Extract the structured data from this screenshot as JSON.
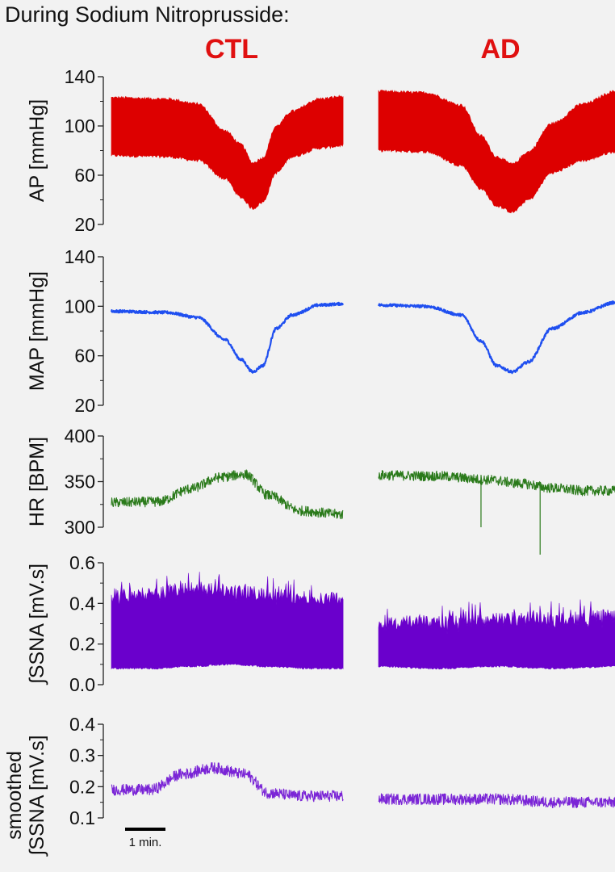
{
  "figure": {
    "title": "During Sodium Nitroprusside:",
    "groups": [
      {
        "label": "CTL",
        "color": "#e01010"
      },
      {
        "label": "AD",
        "color": "#e01010"
      }
    ],
    "scale_bar": "1 min."
  },
  "chart_data": [
    {
      "type": "line",
      "ylabel": "AP [mmHg]",
      "ylim": [
        20,
        140
      ],
      "yticks": [
        "20",
        "60",
        "100",
        "140"
      ],
      "color": "#dd0000",
      "style": "band",
      "x_unit": "min",
      "series": [
        {
          "group": "CTL",
          "x": [
            0,
            1.4,
            2.2,
            2.9,
            3.3,
            3.6,
            3.85,
            4.2,
            4.6,
            5.3,
            5.9
          ],
          "systolic": [
            123,
            122,
            118,
            96,
            85,
            70,
            74,
            100,
            112,
            122,
            124
          ],
          "diastolic": [
            76,
            75,
            72,
            57,
            42,
            33,
            38,
            62,
            75,
            82,
            84
          ]
        },
        {
          "group": "AD",
          "x": [
            0,
            1.2,
            2.1,
            2.6,
            3.0,
            3.4,
            3.8,
            4.4,
            5.2,
            6.0
          ],
          "systolic": [
            128,
            127,
            117,
            92,
            75,
            69,
            79,
            102,
            118,
            128
          ],
          "diastolic": [
            80,
            79,
            68,
            49,
            35,
            30,
            40,
            62,
            72,
            79
          ]
        }
      ]
    },
    {
      "type": "line",
      "ylabel": "MAP [mmHg]",
      "ylim": [
        20,
        140
      ],
      "yticks": [
        "20",
        "60",
        "100",
        "140"
      ],
      "color": "#1f4ff0",
      "style": "line",
      "x_unit": "min",
      "series": [
        {
          "group": "CTL",
          "x": [
            0,
            1.4,
            2.2,
            2.9,
            3.3,
            3.6,
            3.85,
            4.2,
            4.6,
            5.3,
            5.9
          ],
          "values": [
            96,
            95,
            91,
            73,
            57,
            47,
            52,
            82,
            93,
            101,
            102
          ]
        },
        {
          "group": "AD",
          "x": [
            0,
            1.2,
            2.1,
            2.6,
            3.0,
            3.4,
            3.8,
            4.4,
            5.2,
            6.0
          ],
          "values": [
            101,
            100,
            93,
            72,
            52,
            47,
            55,
            82,
            95,
            103
          ]
        }
      ]
    },
    {
      "type": "line",
      "ylabel": "HR [BPM]",
      "ylim": [
        300,
        400
      ],
      "yticks": [
        "300",
        "350",
        "400"
      ],
      "color": "#2a7a1a",
      "style": "line",
      "x_unit": "min",
      "series": [
        {
          "group": "CTL",
          "x": [
            0,
            1.2,
            2.0,
            2.8,
            3.4,
            4.0,
            4.8,
            5.9
          ],
          "values": [
            327,
            328,
            342,
            355,
            358,
            335,
            318,
            314
          ]
        },
        {
          "group": "AD",
          "x": [
            0,
            1.5,
            2.8,
            3.6,
            4.4,
            5.2,
            6.0
          ],
          "values": [
            357,
            356,
            352,
            348,
            343,
            340,
            340
          ]
        }
      ]
    },
    {
      "type": "line",
      "ylabel": "∫SSNA [mV.s]",
      "ylim": [
        0.0,
        0.6
      ],
      "yticks": [
        "0.0",
        "0.2",
        "0.4",
        "0.6"
      ],
      "color": "#6a00cc",
      "style": "band",
      "x_unit": "min",
      "series": [
        {
          "group": "CTL",
          "x": [
            0,
            1.0,
            2.0,
            3.0,
            4.0,
            5.0,
            5.9
          ],
          "upper": [
            0.43,
            0.43,
            0.47,
            0.45,
            0.43,
            0.42,
            0.41
          ],
          "lower": [
            0.08,
            0.08,
            0.09,
            0.1,
            0.09,
            0.08,
            0.08
          ]
        },
        {
          "group": "AD",
          "x": [
            0,
            1.5,
            3.0,
            4.5,
            6.0
          ],
          "upper": [
            0.29,
            0.3,
            0.31,
            0.31,
            0.33
          ],
          "lower": [
            0.09,
            0.08,
            0.09,
            0.08,
            0.09
          ]
        }
      ]
    },
    {
      "type": "line",
      "ylabel": "smoothed ∫SSNA [mV.s]",
      "ylabel_lines": [
        "smoothed",
        "∫SSNA [mV.s]"
      ],
      "ylim": [
        0.1,
        0.4
      ],
      "yticks": [
        "0.1",
        "0.2",
        "0.3",
        "0.4"
      ],
      "color": "#7a24d6",
      "style": "line",
      "x_unit": "min",
      "series": [
        {
          "group": "CTL",
          "x": [
            0,
            1.0,
            1.8,
            2.6,
            3.4,
            4.0,
            4.8,
            5.9
          ],
          "values": [
            0.19,
            0.19,
            0.24,
            0.26,
            0.24,
            0.18,
            0.17,
            0.17
          ]
        },
        {
          "group": "AD",
          "x": [
            0,
            1.5,
            3.0,
            4.5,
            6.0
          ],
          "values": [
            0.16,
            0.16,
            0.16,
            0.15,
            0.15
          ]
        }
      ]
    }
  ]
}
